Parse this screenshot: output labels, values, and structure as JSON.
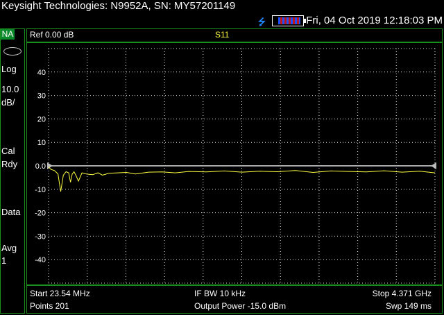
{
  "window": {
    "title": "Keysight Technologies: N9952A, SN: MY57201149"
  },
  "status": {
    "datetime": "Fri, 04 Oct 2019 12:18:03 PM",
    "usb_icon": "usb-icon",
    "battery_icon": "battery-icon"
  },
  "sidebar": {
    "mode": "NA",
    "scale_type": "Log",
    "scale_value": "10.0",
    "scale_unit": "dB/",
    "cal_line1": "Cal",
    "cal_line2": "Rdy",
    "data": "Data",
    "avg_line1": "Avg",
    "avg_line2": "1"
  },
  "plot_header": {
    "ref": "Ref 0.00 dB",
    "trace": "S11"
  },
  "footer": {
    "start": "Start 23.54 MHz",
    "points": "Points 201",
    "ifbw": "IF BW 10 kHz",
    "power": "Output Power -15.0 dBm",
    "stop": "Stop 4.371 GHz",
    "sweep": "Swp 149 ms"
  },
  "colors": {
    "trace": "#ffff40",
    "grid": "#e8e8e8",
    "border": "#1a8f1a",
    "ref_line": "#aaaaaa"
  },
  "chart_data": {
    "type": "line",
    "ylim": [
      -50,
      50
    ],
    "yticks": [
      "40",
      "30",
      "20",
      "10",
      "0.0",
      "-10",
      "-20",
      "-30",
      "-40"
    ],
    "ytick_values": [
      40,
      30,
      20,
      10,
      0,
      -10,
      -20,
      -30,
      -40
    ],
    "xlim": [
      0.02354,
      4.371
    ],
    "grid": true,
    "series": [
      {
        "x": [
          0.024,
          0.05,
          0.09,
          0.13,
          0.16,
          0.19,
          0.22,
          0.25,
          0.27,
          0.29,
          0.31,
          0.33,
          0.36,
          0.4,
          0.45,
          0.52,
          0.58,
          0.63,
          0.7,
          0.8,
          0.9,
          1.0,
          1.15,
          1.3,
          1.45,
          1.6,
          1.8,
          2.0,
          2.2,
          2.4,
          2.6,
          2.8,
          3.0,
          3.2,
          3.4,
          3.6,
          3.8,
          4.0,
          4.2,
          4.371
        ],
        "y": [
          -0.5,
          -1.5,
          -2.0,
          -3.5,
          -11.0,
          -4.0,
          -2.5,
          -3.0,
          -7.0,
          -3.5,
          -2.5,
          -4.0,
          -6.5,
          -3.0,
          -3.5,
          -3.8,
          -3.0,
          -4.0,
          -3.2,
          -3.0,
          -2.8,
          -3.5,
          -2.7,
          -2.6,
          -3.0,
          -2.4,
          -2.6,
          -2.2,
          -2.7,
          -2.3,
          -2.5,
          -2.0,
          -2.8,
          -2.2,
          -2.4,
          -2.6,
          -2.1,
          -2.7,
          -2.3,
          -3.0
        ]
      }
    ]
  }
}
